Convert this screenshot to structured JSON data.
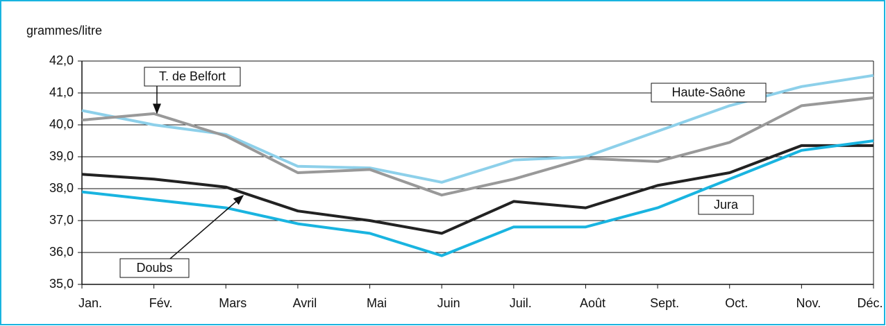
{
  "chart_data": {
    "type": "line",
    "y_label": "grammes/litre",
    "categories": [
      "Jan.",
      "Fév.",
      "Mars",
      "Avril",
      "Mai",
      "Juin",
      "Juil.",
      "Août",
      "Sept.",
      "Oct.",
      "Nov.",
      "Déc."
    ],
    "series": [
      {
        "name": "Haute-Saône",
        "color": "#8dd0ea",
        "values": [
          40.45,
          40.0,
          39.7,
          38.7,
          38.65,
          38.2,
          38.9,
          39.0,
          39.8,
          40.6,
          41.2,
          41.55
        ]
      },
      {
        "name": "T. de Belfort",
        "color": "#999999",
        "values": [
          40.15,
          40.35,
          39.65,
          38.5,
          38.6,
          37.8,
          38.3,
          38.95,
          38.85,
          39.45,
          40.6,
          40.85
        ]
      },
      {
        "name": "Doubs",
        "color": "#222222",
        "values": [
          38.45,
          38.3,
          38.05,
          37.3,
          37.0,
          36.6,
          37.6,
          37.4,
          38.1,
          38.5,
          39.35,
          39.35
        ]
      },
      {
        "name": "Jura",
        "color": "#19b4e0",
        "values": [
          37.9,
          37.65,
          37.4,
          36.9,
          36.6,
          35.9,
          36.8,
          36.8,
          37.4,
          38.3,
          39.2,
          39.5
        ]
      }
    ],
    "ylim": [
      35,
      42
    ],
    "yticks": [
      {
        "value": 35,
        "label": "35,0"
      },
      {
        "value": 36,
        "label": "36,0"
      },
      {
        "value": 37,
        "label": "37,0"
      },
      {
        "value": 38,
        "label": "38,0"
      },
      {
        "value": 39,
        "label": "39,0"
      },
      {
        "value": 40,
        "label": "40,0"
      },
      {
        "value": 41,
        "label": "41,0"
      },
      {
        "value": 42,
        "label": "42,0"
      }
    ],
    "grid": true
  }
}
